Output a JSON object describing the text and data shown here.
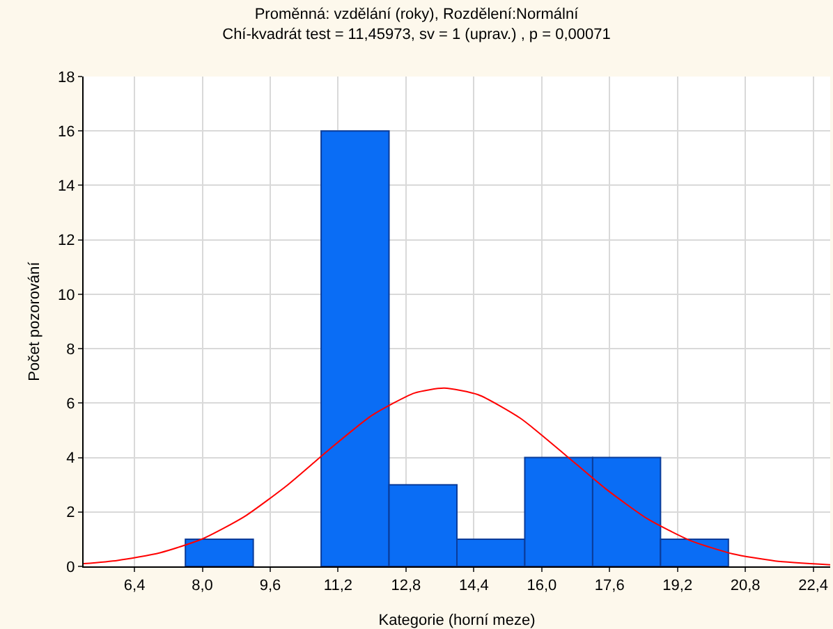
{
  "chart_data": {
    "type": "histogram",
    "title": "Proměnná: vzdělání (roky), Rozdělení:Normální",
    "subtitle": "Chí-kvadrát test = 11,45973, sv = 1 (uprav.) , p = 0,00071",
    "xlabel": "Kategorie (horní meze)",
    "ylabel": "Počet pozorování",
    "bins": [
      7.6,
      9.2,
      10.8,
      12.4,
      14.0,
      15.6,
      17.2,
      18.8,
      20.4
    ],
    "values": [
      1,
      0,
      16,
      3,
      1,
      4,
      4,
      1
    ],
    "color": "#0a6df5",
    "series": [
      {
        "type": "line",
        "color": "#ff0000",
        "x": [
          5.2,
          6.0,
          7.0,
          8.0,
          9.0,
          10.0,
          11.0,
          12.0,
          13.0,
          13.7,
          14.5,
          15.5,
          16.5,
          17.5,
          18.5,
          19.5,
          20.5,
          21.5,
          22.8
        ],
        "values": [
          0.1,
          0.22,
          0.5,
          1.01,
          1.84,
          2.98,
          4.31,
          5.55,
          6.37,
          6.55,
          6.31,
          5.44,
          4.17,
          2.86,
          1.74,
          0.95,
          0.46,
          0.2,
          0.06
        ]
      }
    ],
    "xlim": [
      5.2,
      22.8
    ],
    "xticks": [
      {
        "value": 6.4,
        "label": "6,4"
      },
      {
        "value": 8.0,
        "label": "8,0"
      },
      {
        "value": 9.6,
        "label": "9,6"
      },
      {
        "value": 11.2,
        "label": "11,2"
      },
      {
        "value": 12.8,
        "label": "12,8"
      },
      {
        "value": 14.4,
        "label": "14,4"
      },
      {
        "value": 16.0,
        "label": "16,0"
      },
      {
        "value": 17.6,
        "label": "17,6"
      },
      {
        "value": 19.2,
        "label": "19,2"
      },
      {
        "value": 20.8,
        "label": "20,8"
      },
      {
        "value": 22.4,
        "label": "22,4"
      }
    ],
    "ylim": [
      0,
      18
    ],
    "yticks": [
      0,
      2,
      4,
      6,
      8,
      10,
      12,
      14,
      16,
      18
    ],
    "grid": true,
    "marker": "none",
    "line_style": "solid"
  }
}
